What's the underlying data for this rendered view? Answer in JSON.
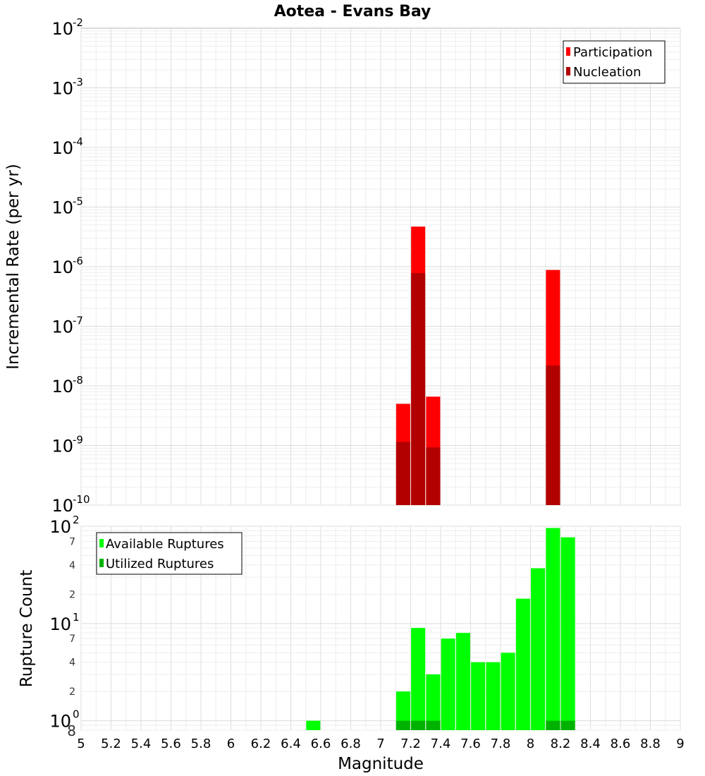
{
  "chart_data": [
    {
      "type": "bar",
      "title": "Aotea - Evans Bay",
      "xlabel": "Magnitude",
      "ylabel": "Incremental Rate (per yr)",
      "yscale": "log",
      "xlim": [
        5,
        9
      ],
      "ylim": [
        1e-10,
        0.01
      ],
      "legend_position": "top-right",
      "y_ticks": [
        {
          "base": "10",
          "exp": "-2"
        },
        {
          "base": "10",
          "exp": "-3"
        },
        {
          "base": "10",
          "exp": "-4"
        },
        {
          "base": "10",
          "exp": "-5"
        },
        {
          "base": "10",
          "exp": "-6"
        },
        {
          "base": "10",
          "exp": "-7"
        },
        {
          "base": "10",
          "exp": "-8"
        },
        {
          "base": "10",
          "exp": "-9"
        },
        {
          "base": "10",
          "exp": "-10"
        }
      ],
      "series": [
        {
          "name": "Participation",
          "color": "#ff0000",
          "x": [
            7.15,
            7.25,
            7.35,
            8.15
          ],
          "values": [
            5e-09,
            4.7e-06,
            6.6e-09,
            8.8e-07
          ]
        },
        {
          "name": "Nucleation",
          "color": "#b20000",
          "x": [
            7.15,
            7.25,
            7.35,
            8.15
          ],
          "values": [
            1.15e-09,
            7.8e-07,
            9.3e-10,
            2.2e-08
          ]
        }
      ]
    },
    {
      "type": "bar",
      "xlabel": "Magnitude",
      "ylabel": "Rupture Count",
      "yscale": "log",
      "xlim": [
        5,
        9
      ],
      "ylim": [
        0.8,
        100
      ],
      "legend_position": "top-left",
      "x_ticks": [
        "5",
        "5.2",
        "5.4",
        "5.6",
        "5.8",
        "6",
        "6.2",
        "6.4",
        "6.6",
        "6.8",
        "7",
        "7.2",
        "7.4",
        "7.6",
        "7.8",
        "8",
        "8.2",
        "8.4",
        "8.6",
        "8.8",
        "9"
      ],
      "y_major_ticks": [
        {
          "base": "10",
          "exp": "2"
        },
        {
          "base": "10",
          "exp": "1"
        },
        {
          "base": "10",
          "exp": "0"
        }
      ],
      "y_minor_ticks": [
        "7",
        "4",
        "2",
        "7",
        "4",
        "2",
        "8"
      ],
      "series": [
        {
          "name": "Available Ruptures",
          "color": "#00ff00",
          "x": [
            6.55,
            7.15,
            7.25,
            7.35,
            7.45,
            7.55,
            7.65,
            7.75,
            7.85,
            7.95,
            8.05,
            8.15,
            8.25
          ],
          "values": [
            1,
            2,
            9,
            3,
            7,
            8,
            4,
            4,
            5,
            18,
            37,
            96,
            77
          ]
        },
        {
          "name": "Utilized Ruptures",
          "color": "#00b200",
          "x": [
            7.15,
            7.25,
            7.35,
            8.15,
            8.25
          ],
          "values": [
            1,
            1,
            1,
            1,
            1
          ]
        }
      ]
    }
  ]
}
